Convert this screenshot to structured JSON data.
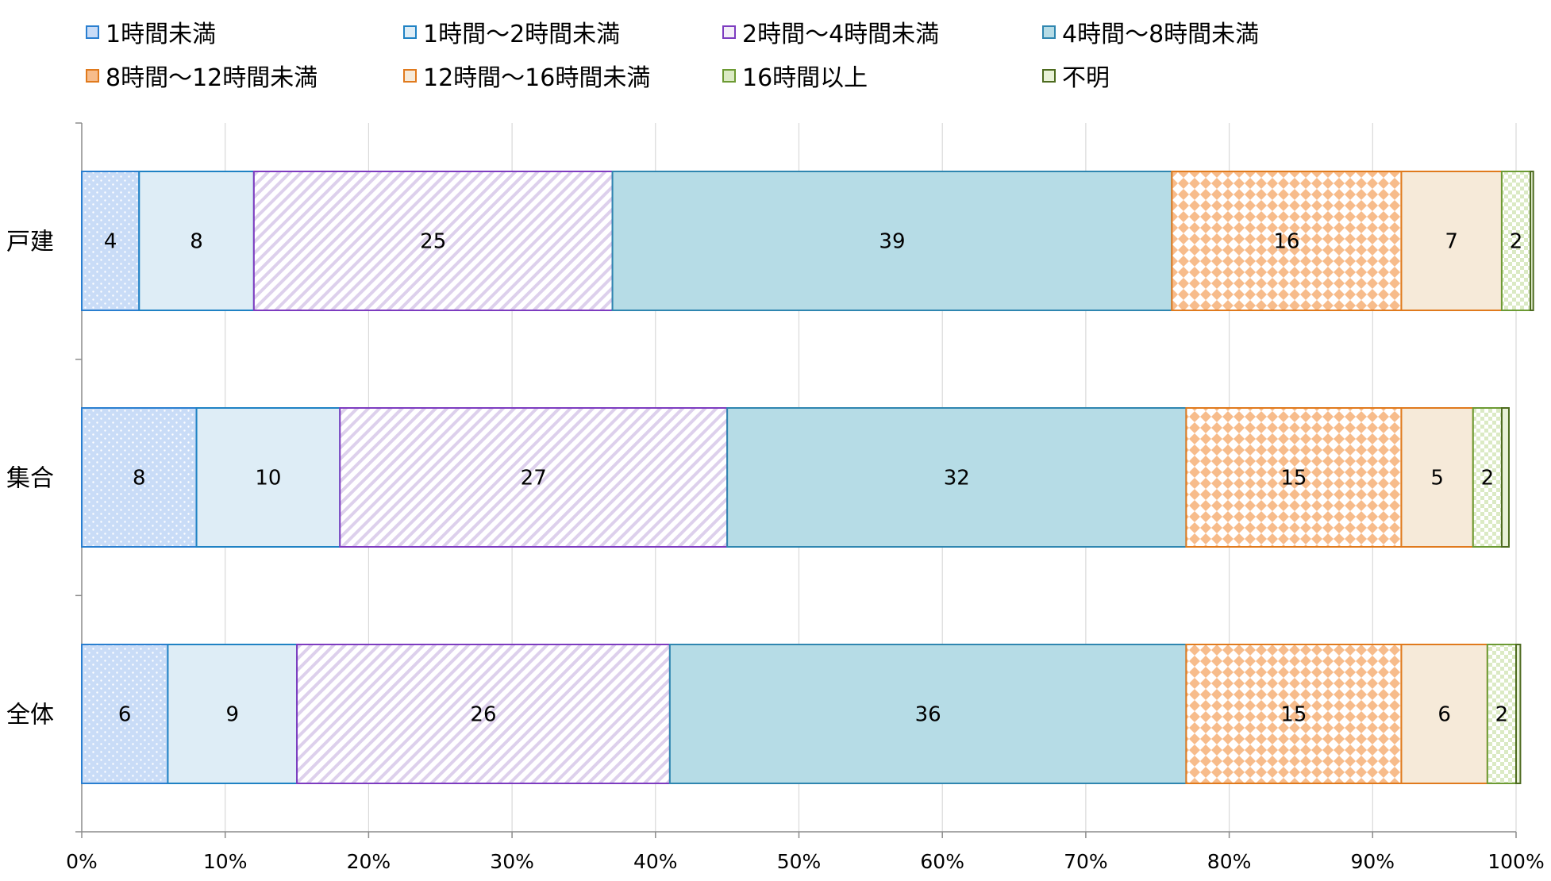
{
  "chart_data": {
    "type": "bar",
    "orientation": "horizontal",
    "stacked": "percent",
    "categories": [
      "戸建",
      "集合",
      "全体"
    ],
    "series": [
      {
        "name": "1時間未満",
        "values": [
          4,
          8,
          6
        ],
        "labels": [
          "4",
          "8",
          "6"
        ],
        "color": "#c9dcf7",
        "border": "#2a7fd0",
        "pattern": "dots"
      },
      {
        "name": "1時間〜2時間未満",
        "values": [
          8,
          10,
          9
        ],
        "labels": [
          "8",
          "10",
          "9"
        ],
        "color": "#deedf6",
        "border": "#1f82c4",
        "pattern": "none"
      },
      {
        "name": "2時間〜4時間未満",
        "values": [
          25,
          27,
          26
        ],
        "labels": [
          "25",
          "27",
          "26"
        ],
        "color": "#f4eff8",
        "border": "#7d3cc0",
        "pattern": "diagonal"
      },
      {
        "name": "4時間〜8時間未満",
        "values": [
          39,
          32,
          36
        ],
        "labels": [
          "39",
          "32",
          "36"
        ],
        "color": "#b6dce6",
        "border": "#2f86b0",
        "pattern": "none"
      },
      {
        "name": "8時間〜12時間未満",
        "values": [
          16,
          15,
          15
        ],
        "labels": [
          "16",
          "15",
          "15"
        ],
        "color": "#f7bc8b",
        "border": "#e07a1d",
        "pattern": "diamonds"
      },
      {
        "name": "12時間〜16時間未満",
        "values": [
          7,
          5,
          6
        ],
        "labels": [
          "7",
          "5",
          "6"
        ],
        "color": "#f6ead9",
        "border": "#e07a1d",
        "pattern": "none"
      },
      {
        "name": "16時間以上",
        "values": [
          2,
          2,
          2
        ],
        "labels": [
          "2",
          "2",
          "2"
        ],
        "color": "#dbeac4",
        "border": "#6c9a33",
        "pattern": "checker"
      },
      {
        "name": "不明",
        "values": [
          0.2,
          0.5,
          0.3
        ],
        "labels": [
          "",
          "",
          ""
        ],
        "color": "#e9f2d8",
        "border": "#4d6b1f",
        "pattern": "none"
      }
    ],
    "x_ticks": [
      "0%",
      "10%",
      "20%",
      "30%",
      "40%",
      "50%",
      "60%",
      "70%",
      "80%",
      "90%",
      "100%"
    ],
    "xlim": [
      0,
      100
    ],
    "grid": true,
    "legend_position": "top"
  }
}
